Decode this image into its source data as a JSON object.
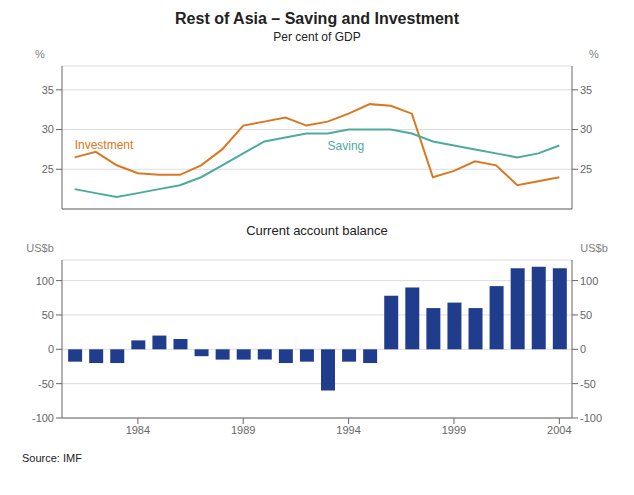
{
  "chart_data": [
    {
      "type": "line",
      "title": "Rest of Asia – Saving and Investment",
      "subtitle": "Per cent of GDP",
      "x": [
        1981,
        1982,
        1983,
        1984,
        1985,
        1986,
        1987,
        1988,
        1989,
        1990,
        1991,
        1992,
        1993,
        1994,
        1995,
        1996,
        1997,
        1998,
        1999,
        2000,
        2001,
        2002,
        2003,
        2004
      ],
      "series": [
        {
          "name": "Investment",
          "color": "#d97820",
          "values": [
            26.5,
            27.2,
            25.5,
            24.5,
            24.3,
            24.3,
            25.5,
            27.5,
            30.5,
            31.0,
            31.5,
            30.5,
            31.0,
            32.0,
            33.2,
            33.0,
            32.0,
            24.0,
            24.8,
            26.0,
            25.5,
            23.0,
            23.5,
            24.0
          ]
        },
        {
          "name": "Saving",
          "color": "#4dab9e",
          "values": [
            22.5,
            22.0,
            21.5,
            22.0,
            22.5,
            23.0,
            24.0,
            25.5,
            27.0,
            28.5,
            29.0,
            29.5,
            29.5,
            30.0,
            30.0,
            30.0,
            29.5,
            28.5,
            28.0,
            27.5,
            27.0,
            26.5,
            27.0,
            28.0
          ]
        }
      ],
      "xlim": [
        1980.4,
        2004.6
      ],
      "ylim": [
        20,
        38
      ],
      "yticks": [
        25,
        30,
        35
      ],
      "y2lim": [
        20,
        38
      ],
      "y2ticks": [
        25,
        30,
        35
      ],
      "ylabel": "%",
      "y2label": "%",
      "grid": true,
      "tick_labels": "y"
    },
    {
      "type": "bar",
      "title": "Current account balance",
      "x": [
        1981,
        1982,
        1983,
        1984,
        1985,
        1986,
        1987,
        1988,
        1989,
        1990,
        1991,
        1992,
        1993,
        1994,
        1995,
        1996,
        1997,
        1998,
        1999,
        2000,
        2001,
        2002,
        2003,
        2004
      ],
      "values": [
        -18,
        -20,
        -20,
        13,
        20,
        15,
        -10,
        -15,
        -15,
        -15,
        -20,
        -18,
        -60,
        -18,
        -20,
        78,
        90,
        60,
        68,
        60,
        92,
        118,
        120,
        118
      ],
      "color": "#1f3d8c",
      "xlim": [
        1980.4,
        2004.6
      ],
      "xticks": [
        1984,
        1989,
        1994,
        1999,
        2004
      ],
      "ylim": [
        -100,
        130
      ],
      "yticks": [
        -100,
        -50,
        0,
        50,
        100
      ],
      "y2lim": [
        -100,
        130
      ],
      "y2ticks": [
        -100,
        -50,
        0,
        50,
        100
      ],
      "ylabel": "US$b",
      "y2label": "US$b",
      "grid": true,
      "annotations": [
        "Source: IMF"
      ]
    }
  ]
}
